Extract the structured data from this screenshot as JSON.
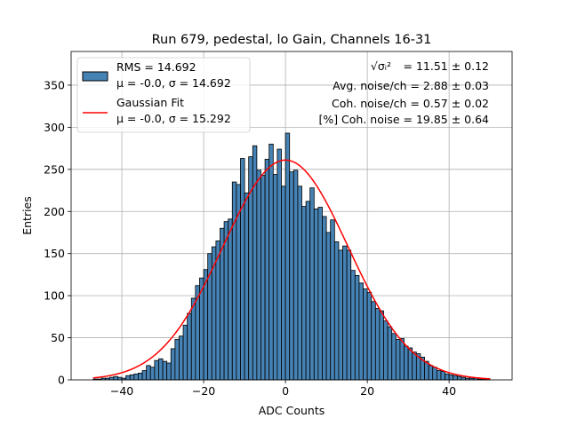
{
  "chart_data": {
    "type": "bar",
    "title": "Run 679, pedestal, lo Gain, Channels 16-31",
    "xlabel": "ADC Counts",
    "ylabel": "Entries",
    "xlim": [
      -52.4,
      55.4
    ],
    "ylim": [
      0,
      390
    ],
    "xticks": [
      -40,
      -20,
      0,
      20,
      40
    ],
    "xtick_labels": [
      "−40",
      "−20",
      "0",
      "20",
      "40"
    ],
    "yticks": [
      0,
      50,
      100,
      150,
      200,
      250,
      300,
      350
    ],
    "ytick_labels": [
      "0",
      "50",
      "100",
      "150",
      "200",
      "250",
      "300",
      "350"
    ],
    "grid": true,
    "bin_width": 1,
    "bin_start": -47,
    "values": [
      1,
      1,
      2,
      2,
      3,
      4,
      3,
      2,
      5,
      6,
      7,
      8,
      11,
      17,
      15,
      23,
      25,
      22,
      20,
      37,
      48,
      52,
      65,
      79,
      97,
      112,
      121,
      131,
      150,
      158,
      165,
      180,
      188,
      191,
      235,
      232,
      263,
      222,
      265,
      278,
      249,
      243,
      262,
      280,
      244,
      274,
      230,
      293,
      247,
      249,
      230,
      206,
      212,
      228,
      203,
      205,
      194,
      175,
      190,
      164,
      154,
      159,
      154,
      130,
      124,
      115,
      108,
      104,
      93,
      85,
      82,
      70,
      63,
      55,
      48,
      49,
      40,
      38,
      33,
      31,
      27,
      22,
      17,
      15,
      11,
      10,
      7,
      6,
      5,
      4,
      3,
      2,
      2,
      2,
      1,
      1,
      1
    ],
    "series": [
      {
        "name": "RMS",
        "label_line1": "RMS = 14.692",
        "label_line2": "μ = -0.0, σ = 14.692",
        "color": "#4682b4",
        "kind": "histogram"
      },
      {
        "name": "Gaussian Fit",
        "label_line1": "Gaussian Fit",
        "label_line2": "μ = -0.0, σ = 15.292",
        "color": "#ff0000",
        "kind": "line",
        "mu": 0.0,
        "sigma": 15.292,
        "amplitude": 261,
        "x_range": [
          -47,
          50
        ]
      }
    ],
    "legend_position": "top-left",
    "annotations": [
      {
        "lhs": "√σᵢ²",
        "rhs": "= 11.51 ± 0.12"
      },
      {
        "text": "Avg. noise/ch = 2.88 ± 0.03"
      },
      {
        "text": "Coh. noise/ch = 0.57 ± 0.02"
      },
      {
        "text": "[%] Coh. noise = 19.85 ± 0.64"
      }
    ]
  }
}
